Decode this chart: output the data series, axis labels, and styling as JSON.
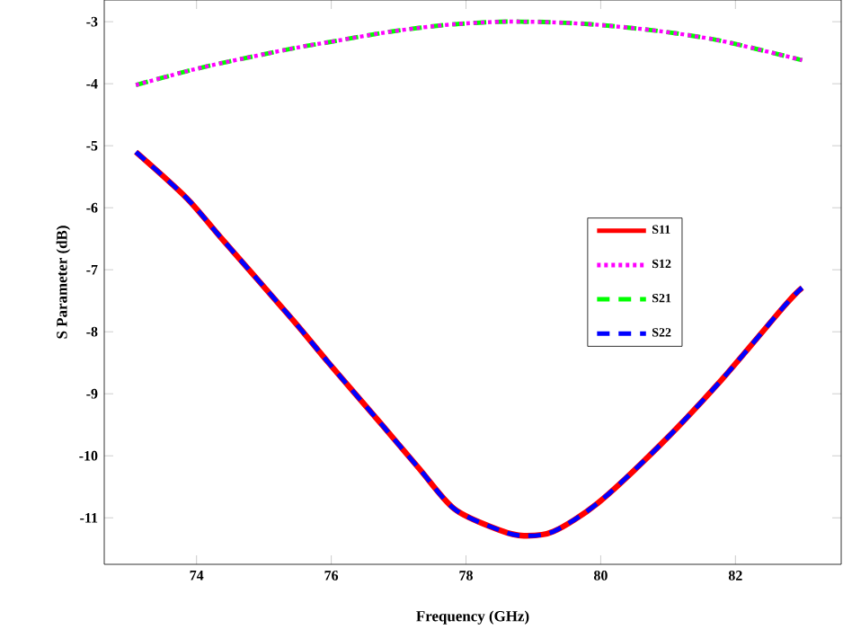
{
  "chart_data": {
    "type": "line",
    "xlabel": "Frequency (GHz)",
    "ylabel": "S Parameter (dB)",
    "xlim": [
      72.63,
      83.57
    ],
    "ylim": [
      -11.75,
      -2.65
    ],
    "xticks": [
      74,
      76,
      78,
      80,
      82
    ],
    "yticks": [
      -11,
      -10,
      -9,
      -8,
      -7,
      -6,
      -5,
      -4,
      -3
    ],
    "x": [
      73.1,
      73.85,
      74.36,
      75.43,
      75.96,
      76.76,
      77.3,
      77.83,
      78.5,
      78.86,
      79.3,
      79.96,
      80.86,
      81.75,
      82.73,
      82.99
    ],
    "legend": "right",
    "grid": false,
    "series": [
      {
        "name": "S11",
        "color": "#ff0000",
        "line_style": "solid",
        "values": [
          -5.1,
          -5.84,
          -6.48,
          -7.81,
          -8.5,
          -9.51,
          -10.2,
          -10.86,
          -11.2,
          -11.29,
          -11.22,
          -10.76,
          -9.85,
          -8.83,
          -7.58,
          -7.29
        ]
      },
      {
        "name": "S12",
        "color": "#ff00ff",
        "line_style": "dotted",
        "values": [
          -4.02,
          -3.8,
          -3.67,
          -3.43,
          -3.33,
          -3.18,
          -3.1,
          -3.04,
          -3.0,
          -3.0,
          -3.01,
          -3.05,
          -3.15,
          -3.3,
          -3.55,
          -3.62
        ]
      },
      {
        "name": "S21",
        "color": "#00ff00",
        "line_style": "dashed",
        "values": [
          -4.02,
          -3.8,
          -3.67,
          -3.43,
          -3.33,
          -3.18,
          -3.1,
          -3.04,
          -3.0,
          -3.0,
          -3.01,
          -3.05,
          -3.15,
          -3.3,
          -3.55,
          -3.62
        ]
      },
      {
        "name": "S22",
        "color": "#0000ff",
        "line_style": "dashed",
        "values": [
          -5.1,
          -5.84,
          -6.48,
          -7.81,
          -8.5,
          -9.51,
          -10.2,
          -10.86,
          -11.2,
          -11.29,
          -11.22,
          -10.76,
          -9.85,
          -8.83,
          -7.58,
          -7.29
        ]
      }
    ]
  }
}
